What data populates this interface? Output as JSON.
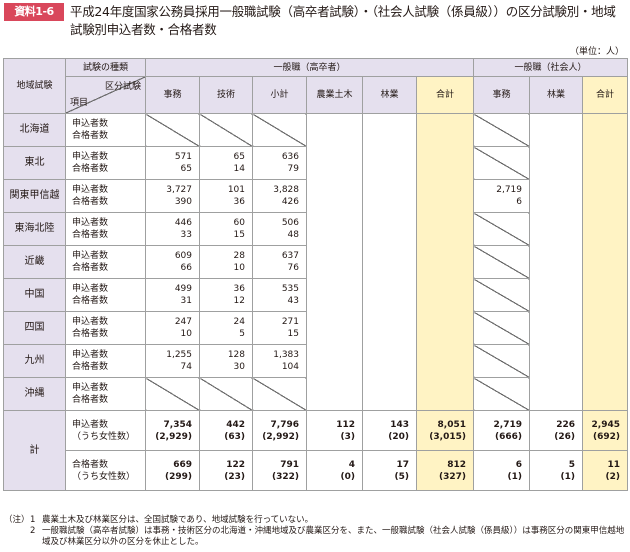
{
  "header": {
    "badge": "資料1-6",
    "title": "平成24年度国家公務員採用一般職試験（高卒者試験）・（社会人試験（係員級））の区分試験別・地域試験別申込者数・合格者数",
    "unit": "（単位：人）"
  },
  "table": {
    "corner_top": "試験の種類",
    "corner_region": "地域試験",
    "corner_split_top": "区分試験",
    "corner_split_bottom": "項目",
    "group1": "一般職（高卒者）",
    "group2": "一般職（社会人）",
    "columns": [
      "事務",
      "技術",
      "小計",
      "農業土木",
      "林業",
      "合計",
      "事務",
      "林業",
      "合計"
    ],
    "item_labels": [
      "申込者数",
      "合格者数"
    ],
    "rows": [
      {
        "region": "北海道",
        "jimu": "",
        "gijutsu": "",
        "shokei": "",
        "s_jimu": ""
      },
      {
        "region": "東北",
        "jimu": "571\n65",
        "gijutsu": "65\n14",
        "shokei": "636\n79",
        "s_jimu": ""
      },
      {
        "region": "関東甲信越",
        "jimu": "3,727\n390",
        "gijutsu": "101\n36",
        "shokei": "3,828\n426",
        "s_jimu": "2,719\n6"
      },
      {
        "region": "東海北陸",
        "jimu": "446\n33",
        "gijutsu": "60\n15",
        "shokei": "506\n48",
        "s_jimu": ""
      },
      {
        "region": "近畿",
        "jimu": "609\n66",
        "gijutsu": "28\n10",
        "shokei": "637\n76",
        "s_jimu": ""
      },
      {
        "region": "中国",
        "jimu": "499\n31",
        "gijutsu": "36\n12",
        "shokei": "535\n43",
        "s_jimu": ""
      },
      {
        "region": "四国",
        "jimu": "247\n10",
        "gijutsu": "24\n5",
        "shokei": "271\n15",
        "s_jimu": ""
      },
      {
        "region": "九州",
        "jimu": "1,255\n74",
        "gijutsu": "128\n30",
        "shokei": "1,383\n104",
        "s_jimu": ""
      },
      {
        "region": "沖縄",
        "jimu": "",
        "gijutsu": "",
        "shokei": "",
        "s_jimu": ""
      }
    ],
    "total_region": "計",
    "total_rows": [
      {
        "label": "申込者数\n（うち女性数）",
        "values": [
          "7,354\n(2,929)",
          "442\n(63)",
          "7,796\n(2,992)",
          "112\n(3)",
          "143\n(20)",
          "8,051\n(3,015)",
          "2,719\n(666)",
          "226\n(26)",
          "2,945\n(692)"
        ]
      },
      {
        "label": "合格者数\n（うち女性数）",
        "values": [
          "669\n(299)",
          "122\n(23)",
          "791\n(322)",
          "4\n(0)",
          "17\n(5)",
          "812\n(327)",
          "6\n(1)",
          "5\n(1)",
          "11\n(2)"
        ]
      }
    ]
  },
  "notes": {
    "lead": "（注）",
    "items": [
      {
        "num": "1",
        "text": "農業土木及び林業区分は、全国試験であり、地域試験を行っていない。"
      },
      {
        "num": "2",
        "text": "一般職試験（高卒者試験）は事務・技術区分の北海道・沖縄地域及び農業区分を、また、一般職試験（社会人試験（係員級））は事務区分の関東甲信越地域及び林業区分以外の区分を休止とした。"
      }
    ]
  },
  "colors": {
    "badge": "#d9475b",
    "header_bg": "#e5e0ee",
    "total_bg": "#fff3c4",
    "border": "#9fa0a0"
  }
}
